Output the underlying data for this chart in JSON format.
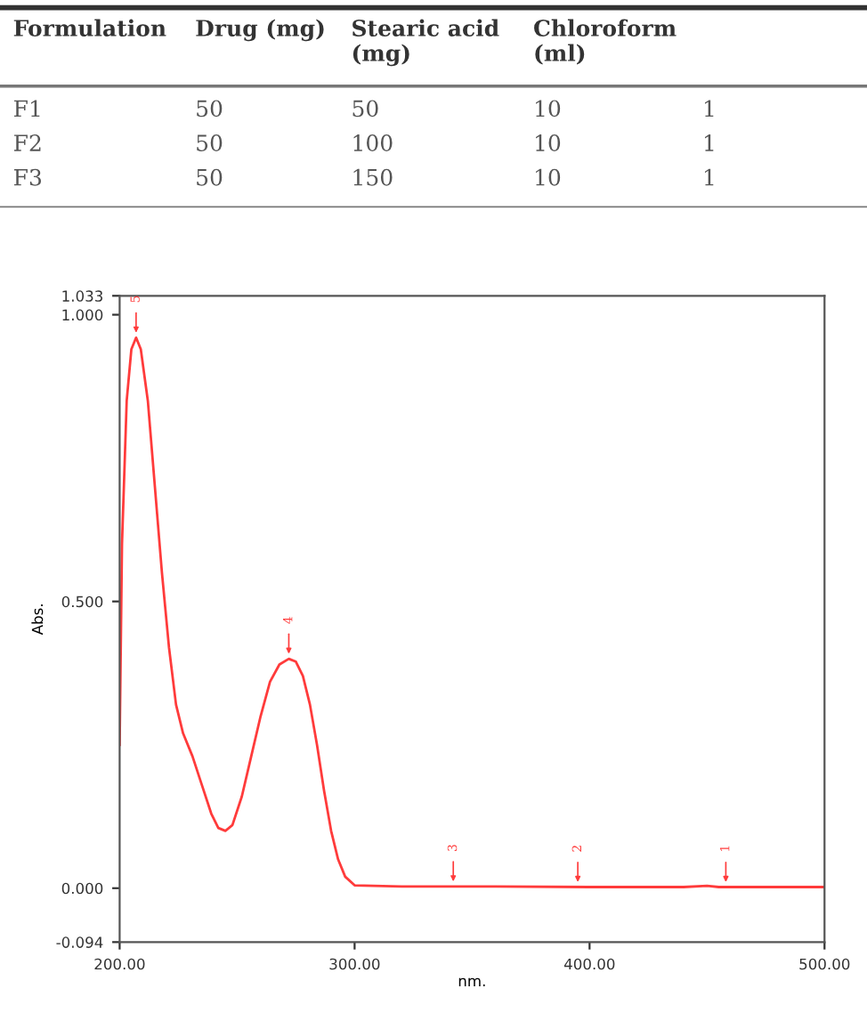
{
  "chart_data": [
    {
      "type": "other",
      "categories": [
        "Formulation",
        "Drug (mg)",
        "Stearic acid\n(mg)",
        "Chloroform\n(ml)",
        null
      ],
      "cell_labels": [
        [
          "F1",
          "50",
          "50",
          "10",
          "1"
        ],
        [
          "F2",
          "50",
          "100",
          "10",
          "1"
        ],
        [
          "F3",
          "50",
          "150",
          "10",
          "1"
        ]
      ]
    },
    {
      "type": "line",
      "xlabel": "nm.",
      "ylabel": "Abs.",
      "x": [
        200,
        201,
        203,
        205,
        207,
        209,
        212,
        215,
        218,
        221,
        224,
        227,
        231,
        235,
        239,
        242,
        245,
        248,
        252,
        256,
        260,
        264,
        268,
        272,
        275,
        278,
        281,
        284,
        287,
        290,
        293,
        296,
        300,
        320,
        360,
        400,
        440,
        450,
        455,
        500
      ],
      "series": [
        {
          "color": "#ff3b3b",
          "values": [
            0.25,
            0.6,
            0.85,
            0.94,
            0.96,
            0.94,
            0.85,
            0.7,
            0.55,
            0.42,
            0.32,
            0.27,
            0.23,
            0.18,
            0.13,
            0.105,
            0.1,
            0.11,
            0.16,
            0.23,
            0.3,
            0.36,
            0.39,
            0.4,
            0.395,
            0.37,
            0.32,
            0.25,
            0.17,
            0.1,
            0.05,
            0.02,
            0.005,
            0.003,
            0.003,
            0.002,
            0.002,
            0.004,
            0.002,
            0.002
          ]
        }
      ],
      "annotations": [
        {
          "text": "5",
          "x": 207,
          "y": 0.96
        },
        {
          "text": "4",
          "x": 272,
          "y": 0.4
        },
        {
          "text": "3",
          "x": 342,
          "y": 0.003
        },
        {
          "text": "2",
          "x": 395,
          "y": 0.002
        },
        {
          "text": "1",
          "x": 458,
          "y": 0.002
        }
      ],
      "xlim": [
        200,
        500
      ],
      "ylim": [
        -0.094,
        1.033
      ],
      "xticks": [
        {
          "value": 200,
          "label": "200.00"
        },
        {
          "value": 300,
          "label": "300.00"
        },
        {
          "value": 400,
          "label": "400.00"
        },
        {
          "value": 500,
          "label": "500.00"
        }
      ],
      "yticks": [
        {
          "value": -0.094,
          "label": "-0.094"
        },
        {
          "value": 0,
          "label": "0.000"
        },
        {
          "value": 0.5,
          "label": "0.500"
        },
        {
          "value": 1.0,
          "label": "1.000"
        },
        {
          "value": 1.033,
          "label": "1.033"
        }
      ],
      "grid": false,
      "legend": false
    }
  ]
}
